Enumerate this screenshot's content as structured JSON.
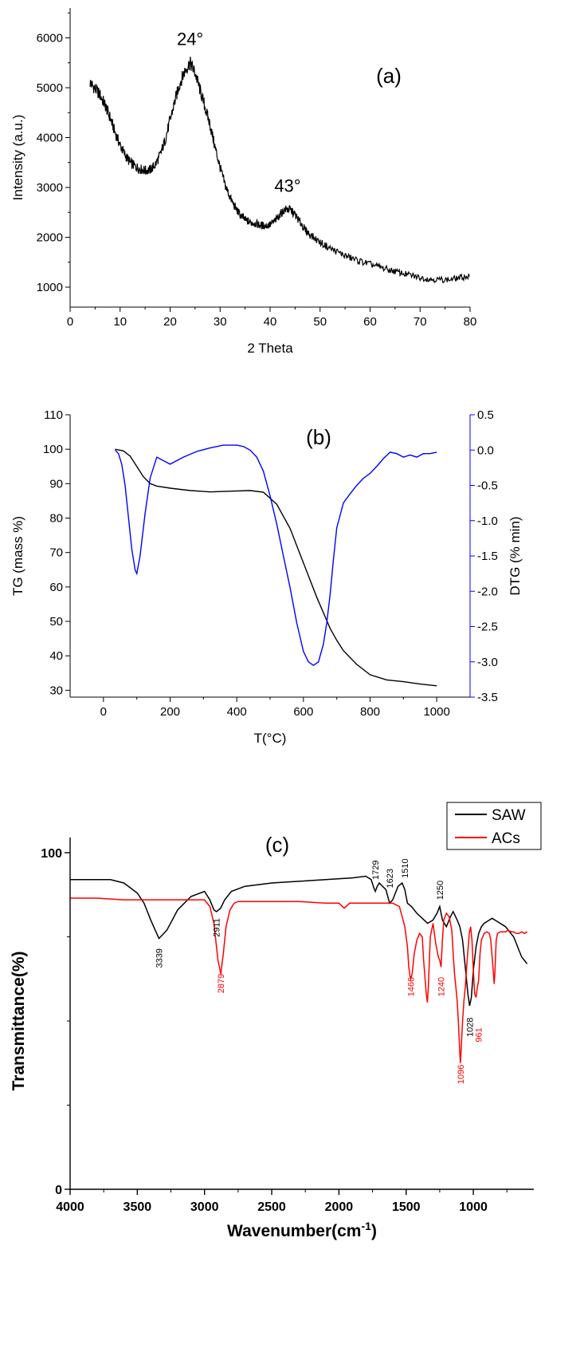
{
  "chart_data": [
    {
      "type": "line",
      "panel": "(a)",
      "xlabel": "2 Theta",
      "ylabel": "Intensity (a.u.)",
      "xlim": [
        0,
        80
      ],
      "ylim": [
        600,
        6600
      ],
      "xticks": [
        0,
        10,
        20,
        30,
        40,
        50,
        60,
        70,
        80
      ],
      "yticks": [
        1000,
        2000,
        3000,
        4000,
        5000,
        6000
      ],
      "grid": false,
      "annotations": [
        {
          "text": "24°",
          "x": 24,
          "y": 5700
        },
        {
          "text": "43°",
          "x": 43.5,
          "y": 2750
        }
      ],
      "series": [
        {
          "color": "#000000",
          "x": [
            4,
            5,
            6,
            7,
            8,
            9,
            10,
            11,
            12,
            13,
            14,
            15,
            16,
            17,
            18,
            19,
            20,
            21,
            22,
            23,
            24,
            25,
            26,
            27,
            28,
            29,
            30,
            31,
            32,
            33,
            34,
            35,
            36,
            37,
            38,
            39,
            40,
            41,
            42,
            43,
            44,
            45,
            46,
            47,
            48,
            50,
            52,
            54,
            56,
            58,
            60,
            62,
            64,
            66,
            68,
            70,
            72,
            74,
            76,
            78,
            80
          ],
          "y": [
            5100,
            4980,
            4850,
            4650,
            4400,
            4100,
            3850,
            3650,
            3500,
            3420,
            3370,
            3340,
            3350,
            3450,
            3650,
            3950,
            4350,
            4750,
            5100,
            5350,
            5500,
            5300,
            4950,
            4600,
            4250,
            3800,
            3400,
            3050,
            2800,
            2600,
            2450,
            2350,
            2300,
            2280,
            2240,
            2230,
            2250,
            2330,
            2460,
            2560,
            2560,
            2450,
            2300,
            2150,
            2050,
            1900,
            1780,
            1680,
            1590,
            1520,
            1460,
            1400,
            1340,
            1290,
            1240,
            1190,
            1160,
            1150,
            1150,
            1190,
            1220
          ]
        }
      ]
    },
    {
      "type": "line",
      "panel": "(b)",
      "xlabel": "T(°C)",
      "ylabel": "TG (mass %)",
      "y2label": "DTG (% min)",
      "xlim": [
        -100,
        1100
      ],
      "ylim": [
        28,
        110
      ],
      "y2lim": [
        -3.5,
        0.5
      ],
      "xticks": [
        0,
        200,
        400,
        600,
        800,
        1000
      ],
      "yticks": [
        30,
        40,
        50,
        60,
        70,
        80,
        90,
        100,
        110
      ],
      "y2ticks": [
        -3.5,
        -3.0,
        -2.5,
        -2.0,
        -1.5,
        -1.0,
        -0.5,
        0.0,
        0.5
      ],
      "grid": false,
      "series": [
        {
          "axis": "left",
          "color": "#000000",
          "x": [
            35,
            60,
            80,
            100,
            120,
            140,
            160,
            200,
            260,
            320,
            380,
            440,
            480,
            520,
            560,
            600,
            640,
            680,
            700,
            720,
            760,
            800,
            850,
            900,
            950,
            1000
          ],
          "y": [
            100,
            99.5,
            98,
            95,
            92,
            90,
            89.3,
            88.7,
            88,
            87.6,
            87.8,
            88,
            87.5,
            84,
            77,
            67,
            57,
            48,
            44.5,
            41.5,
            37.5,
            34.5,
            33,
            32.5,
            31.8,
            31.3
          ]
        },
        {
          "axis": "right",
          "color": "#0000ff",
          "x": [
            35,
            45,
            55,
            65,
            75,
            85,
            95,
            100,
            110,
            125,
            140,
            160,
            180,
            200,
            240,
            280,
            320,
            360,
            400,
            420,
            440,
            460,
            480,
            500,
            520,
            540,
            560,
            580,
            600,
            615,
            630,
            645,
            660,
            670,
            680,
            690,
            700,
            720,
            740,
            760,
            780,
            800,
            820,
            840,
            860,
            880,
            900,
            920,
            940,
            960,
            980,
            1000
          ],
          "y": [
            0.0,
            -0.05,
            -0.2,
            -0.5,
            -0.95,
            -1.4,
            -1.7,
            -1.75,
            -1.5,
            -0.9,
            -0.4,
            -0.1,
            -0.15,
            -0.2,
            -0.1,
            -0.02,
            0.03,
            0.07,
            0.07,
            0.05,
            0.0,
            -0.1,
            -0.3,
            -0.65,
            -1.05,
            -1.5,
            -1.95,
            -2.45,
            -2.85,
            -3.0,
            -3.05,
            -3.0,
            -2.75,
            -2.45,
            -2.05,
            -1.55,
            -1.1,
            -0.75,
            -0.62,
            -0.5,
            -0.4,
            -0.33,
            -0.23,
            -0.12,
            -0.03,
            -0.05,
            -0.1,
            -0.07,
            -0.1,
            -0.05,
            -0.05,
            -0.03
          ]
        }
      ]
    },
    {
      "type": "line",
      "panel": "(c)",
      "xlabel": "Wavenumber(cm-1)",
      "xlabel_main": "Wavenumber(cm",
      "xlabel_sup": "-1",
      "xlabel_end": ")",
      "ylabel": "Transmittance(%)",
      "xlim": [
        4000,
        550
      ],
      "ylim": [
        0,
        100
      ],
      "xticks": [
        4000,
        3500,
        3000,
        2500,
        2000,
        1500,
        1000
      ],
      "yticks": [
        0,
        100
      ],
      "grid": false,
      "legend": "top-right",
      "peak_labels": [
        {
          "text": "3339",
          "x": 3339,
          "y": 72.5,
          "series": "SAW"
        },
        {
          "text": "2911",
          "x": 2911,
          "y": 81.5,
          "series": "SAW"
        },
        {
          "text": "1729",
          "x": 1729,
          "y": 91,
          "series": "SAW"
        },
        {
          "text": "1623",
          "x": 1623,
          "y": 88.5,
          "series": "SAW"
        },
        {
          "text": "1510",
          "x": 1510,
          "y": 91.5,
          "series": "SAW"
        },
        {
          "text": "1250",
          "x": 1250,
          "y": 85,
          "series": "SAW"
        },
        {
          "text": "1028",
          "x": 1028,
          "y": 52,
          "series": "SAW"
        },
        {
          "text": "2879",
          "x": 2879,
          "y": 65,
          "series": "ACs"
        },
        {
          "text": "1466",
          "x": 1466,
          "y": 64,
          "series": "ACs"
        },
        {
          "text": "1240",
          "x": 1240,
          "y": 64,
          "series": "ACs"
        },
        {
          "text": "1096",
          "x": 1096,
          "y": 38,
          "series": "ACs"
        },
        {
          "text": "961",
          "x": 961,
          "y": 49,
          "series": "ACs"
        }
      ],
      "series": [
        {
          "name": "SAW",
          "color": "#000000",
          "x": [
            4000,
            3800,
            3700,
            3600,
            3500,
            3450,
            3400,
            3339,
            3280,
            3200,
            3100,
            3000,
            2960,
            2930,
            2911,
            2880,
            2850,
            2800,
            2700,
            2500,
            2300,
            2100,
            1900,
            1800,
            1760,
            1740,
            1729,
            1715,
            1700,
            1650,
            1623,
            1600,
            1560,
            1530,
            1510,
            1490,
            1460,
            1420,
            1380,
            1340,
            1300,
            1270,
            1250,
            1230,
            1200,
            1170,
            1150,
            1120,
            1100,
            1080,
            1060,
            1040,
            1028,
            1015,
            1000,
            980,
            960,
            940,
            920,
            900,
            880,
            860,
            840,
            820,
            800,
            780,
            760,
            740,
            720,
            700,
            680,
            660,
            640,
            620,
            600
          ],
          "y": [
            92,
            92,
            92,
            91,
            88,
            85,
            80,
            74.5,
            77,
            83,
            87,
            88.5,
            86,
            83,
            82.5,
            83.5,
            86,
            88.5,
            90,
            91,
            91.5,
            92,
            92.5,
            93,
            92,
            89.5,
            88.5,
            90,
            91,
            89,
            85,
            86,
            90,
            91,
            89,
            85,
            84,
            82,
            80.5,
            79,
            80,
            82,
            84,
            80,
            78,
            81,
            82.5,
            80,
            78,
            74,
            66,
            58,
            54.5,
            57,
            65,
            72,
            76,
            78,
            79,
            79.5,
            80,
            80.5,
            80,
            79.5,
            79,
            78.5,
            78,
            77,
            76,
            75,
            73,
            71,
            69,
            68,
            67
          ]
        },
        {
          "name": "ACs",
          "color": "#ff0000",
          "x": [
            4000,
            3800,
            3600,
            3400,
            3200,
            3000,
            2960,
            2930,
            2900,
            2879,
            2860,
            2840,
            2810,
            2780,
            2750,
            2700,
            2500,
            2300,
            2100,
            2000,
            1960,
            1920,
            1800,
            1600,
            1550,
            1510,
            1490,
            1480,
            1470,
            1466,
            1455,
            1440,
            1420,
            1400,
            1380,
            1370,
            1360,
            1350,
            1342,
            1335,
            1320,
            1300,
            1280,
            1260,
            1250,
            1240,
            1230,
            1220,
            1200,
            1180,
            1160,
            1150,
            1140,
            1130,
            1120,
            1110,
            1100,
            1096,
            1090,
            1080,
            1070,
            1060,
            1050,
            1040,
            1030,
            1020,
            1010,
            1000,
            990,
            980,
            970,
            961,
            950,
            940,
            930,
            920,
            900,
            880,
            870,
            860,
            850,
            845,
            840,
            830,
            820,
            800,
            780,
            760,
            740,
            720,
            700,
            680,
            660,
            640,
            620,
            600
          ],
          "y": [
            86.5,
            86.5,
            86,
            86,
            86,
            86,
            84,
            79,
            68,
            64,
            70,
            78,
            83,
            85,
            85.5,
            85.5,
            85.5,
            85.5,
            85,
            85,
            83.5,
            85,
            85,
            85,
            84,
            78,
            72,
            66,
            63,
            62.5,
            64,
            70,
            74,
            76,
            75,
            68,
            63,
            58,
            55.5,
            60,
            75,
            79,
            73,
            69,
            68,
            66,
            74,
            80,
            82,
            81,
            77,
            70,
            64,
            60,
            56,
            49,
            40,
            37.5,
            42,
            50,
            56,
            60,
            66,
            71,
            76,
            78,
            74,
            65,
            58,
            57,
            60,
            62,
            70,
            74,
            75,
            76,
            76.5,
            76,
            74,
            69,
            64,
            61,
            64,
            74,
            76,
            76.5,
            76.5,
            76.5,
            77,
            76.5,
            76.5,
            76,
            76,
            76.5,
            76,
            76.5
          ]
        }
      ]
    }
  ]
}
